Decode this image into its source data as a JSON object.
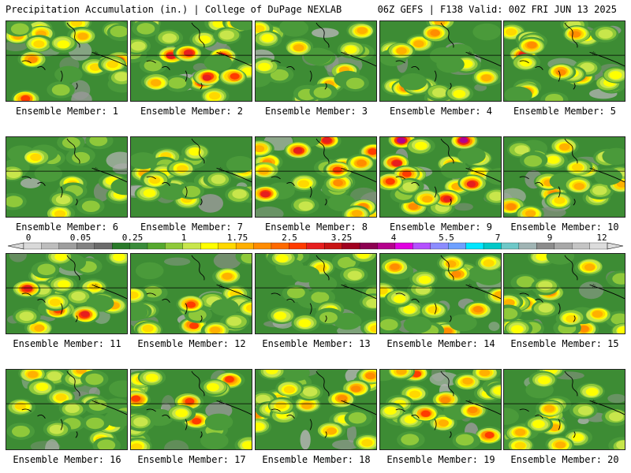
{
  "header": {
    "left": "Precipitation Accumulation (in.) | College of DuPage NEXLAB",
    "right": "06Z GEFS | F138 Valid: 00Z FRI JUN 13 2025"
  },
  "panels": [
    {
      "label": "Ensemble Member: 1"
    },
    {
      "label": "Ensemble Member: 2"
    },
    {
      "label": "Ensemble Member: 3"
    },
    {
      "label": "Ensemble Member: 4"
    },
    {
      "label": "Ensemble Member: 5"
    },
    {
      "label": "Ensemble Member: 6"
    },
    {
      "label": "Ensemble Member: 7"
    },
    {
      "label": "Ensemble Member: 8"
    },
    {
      "label": "Ensemble Member: 9"
    },
    {
      "label": "Ensemble Member: 10"
    },
    {
      "label": "Ensemble Member: 11"
    },
    {
      "label": "Ensemble Member: 12"
    },
    {
      "label": "Ensemble Member: 13"
    },
    {
      "label": "Ensemble Member: 14"
    },
    {
      "label": "Ensemble Member: 15"
    },
    {
      "label": "Ensemble Member: 16"
    },
    {
      "label": "Ensemble Member: 17"
    },
    {
      "label": "Ensemble Member: 18"
    },
    {
      "label": "Ensemble Member: 19"
    },
    {
      "label": "Ensemble Member: 20"
    }
  ],
  "colorbar": {
    "tick_labels": [
      "0",
      "0.05",
      "0.25",
      "1",
      "1.75",
      "2.5",
      "3.25",
      "4",
      "5.5",
      "7",
      "9",
      "12"
    ],
    "colors": [
      "#d9d9d9",
      "#bdbdbd",
      "#9e9e9e",
      "#828282",
      "#6b6b6b",
      "#2a7a2a",
      "#3a8c3a",
      "#55a82e",
      "#8fc93a",
      "#c8e64b",
      "#ffff00",
      "#ffd800",
      "#ffb000",
      "#ff8c00",
      "#ff6a00",
      "#ff3b00",
      "#e61e1e",
      "#c81414",
      "#a0001e",
      "#8c0050",
      "#b4008c",
      "#e000e0",
      "#b450ff",
      "#8c8cff",
      "#6ea0ff",
      "#00e6ff",
      "#00c8c8",
      "#6ec8c8",
      "#a0b4b4",
      "#8c8c8c",
      "#a8a8a8",
      "#c4c4c4",
      "#dcdcdc"
    ]
  }
}
